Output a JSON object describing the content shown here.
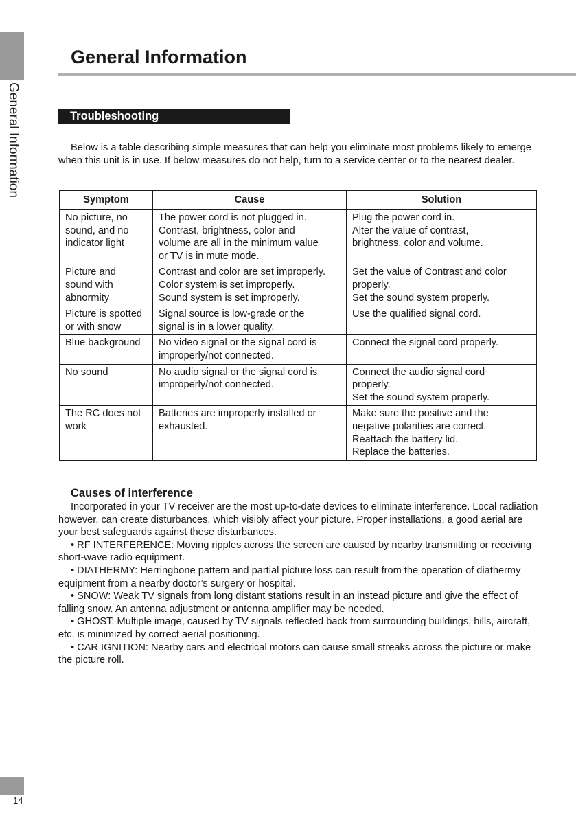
{
  "sidebar": {
    "section_label": "General Information"
  },
  "header": {
    "title": "General Information"
  },
  "section": {
    "title": "Troubleshooting"
  },
  "intro": "Below is a table describing simple measures that can help you eliminate most problems likely to emerge when this unit is in use. If below measures do not help, turn to a service center or to the nearest dealer.",
  "table": {
    "headers": [
      "Symptom",
      "Cause",
      "Solution"
    ],
    "rows": [
      {
        "symptom": [
          "No picture, no",
          "sound, and no",
          "indicator light"
        ],
        "cause": [
          "The power cord is not plugged in.",
          "Contrast, brightness, color and",
          "volume are all in the minimum value",
          "or TV is in mute mode."
        ],
        "solution": [
          "Plug the power cord in.",
          "Alter the value of contrast,",
          "brightness, color and volume."
        ]
      },
      {
        "symptom": [
          "Picture and",
          "sound with",
          "abnormity"
        ],
        "cause": [
          "Contrast and color are set improperly.",
          "Color system is set improperly.",
          "Sound system is set improperly."
        ],
        "solution": [
          "Set the value of Contrast and color",
          "properly.",
          "Set the sound system properly."
        ]
      },
      {
        "symptom": [
          "Picture is spotted",
          "or with snow"
        ],
        "cause": [
          "Signal source is low-grade or the",
          "signal is in a lower quality."
        ],
        "solution": [
          "Use the qualified signal cord."
        ]
      },
      {
        "symptom": [
          "Blue background"
        ],
        "cause": [
          "No video signal or the signal cord is",
          "improperly/not connected."
        ],
        "solution": [
          "Connect the signal cord properly."
        ]
      },
      {
        "symptom": [
          "No sound"
        ],
        "cause": [
          "No audio signal or the signal cord is",
          "improperly/not connected."
        ],
        "solution": [
          "Connect the audio signal cord",
          "properly.",
          "Set the sound system properly."
        ]
      },
      {
        "symptom": [
          "The RC does not",
          "work"
        ],
        "cause": [
          "Batteries are improperly installed or",
          "exhausted."
        ],
        "solution": [
          "Make sure the positive and the",
          "negative polarities are correct.",
          "Reattach the battery lid.",
          "Replace the batteries."
        ]
      }
    ]
  },
  "causes": {
    "title": "Causes of interference",
    "paragraphs": [
      "Incorporated in your TV receiver are the most up-to-date devices to eliminate interference. Local radiation however, can create disturbances, which visibly affect your picture. Proper installations, a good aerial are your best safeguards against these disturbances.",
      "• RF INTERFERENCE: Moving ripples across the screen are caused by nearby transmitting or receiving short-wave radio equipment.",
      "• DIATHERMY: Herringbone pattern and partial picture loss can result from the operation of diathermy equipment from a nearby doctor’s surgery or hospital.",
      "• SNOW: Weak TV signals from long distant stations result in an instead picture and give the effect of falling snow. An antenna adjustment or antenna amplifier may be needed.",
      "• GHOST: Multiple image, caused by TV signals reflected back from surrounding buildings, hills, aircraft, etc. is minimized by correct aerial positioning.",
      "• CAR IGNITION: Nearby cars and electrical motors can cause small streaks across the picture or make the picture roll."
    ]
  },
  "footer": {
    "page_number": "14"
  }
}
